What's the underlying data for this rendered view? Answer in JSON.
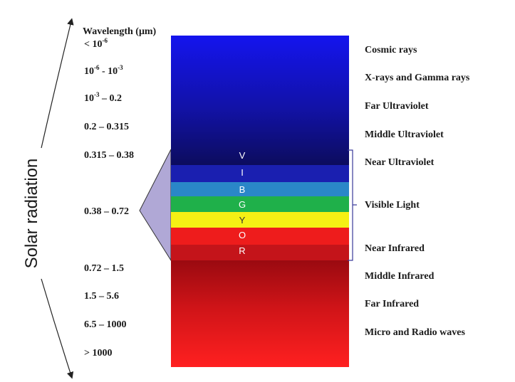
{
  "axis": {
    "label": "Solar radiation",
    "header": "Wavelength (μm)"
  },
  "rows": [
    {
      "wavelength_base": "< 10",
      "wavelength_sup": "-6",
      "band": "Cosmic rays"
    },
    {
      "wavelength_base": "10",
      "wavelength_sup": "-6",
      "wavelength_mid": " - 10",
      "wavelength_sup2": "-3",
      "band": "X-rays and Gamma rays"
    },
    {
      "wavelength_base": "10",
      "wavelength_sup": "-3",
      "wavelength_mid": " – 0.2",
      "band": "Far Ultraviolet"
    },
    {
      "wavelength": "0.2 – 0.315",
      "band": "Middle Ultraviolet"
    },
    {
      "wavelength": "0.315 – 0.38",
      "band": "Near Ultraviolet"
    },
    {
      "wavelength": "0.38 – 0.72",
      "band": "Visible Light"
    },
    {
      "wavelength": "",
      "band": "Near Infrared"
    },
    {
      "wavelength": "0.72 – 1.5",
      "band": "Middle Infrared"
    },
    {
      "wavelength": "1.5 – 5.6",
      "band": "Far Infrared"
    },
    {
      "wavelength": "6.5 – 1000",
      "band": "Micro and Radio waves"
    },
    {
      "wavelength": "> 1000",
      "band": ""
    }
  ],
  "visible_spectrum": {
    "letters": [
      "V",
      "I",
      "B",
      "G",
      "Y",
      "O",
      "R"
    ],
    "colors": {
      "violet": "#1a1fb0",
      "indigo": "#1a33c8",
      "blue": "#2a87c8",
      "green": "#1fb04a",
      "yellow": "#f5f014",
      "orange": "#ee1c1c",
      "red": "#c4141a"
    }
  },
  "colors": {
    "uv_top": "#1414ee",
    "uv_bottom": "#0c0c5e",
    "ir_top": "#9a0a10",
    "ir_bottom": "#ff2020",
    "callout_fill": "#b0a8d6",
    "text": "#1a1a1a"
  }
}
